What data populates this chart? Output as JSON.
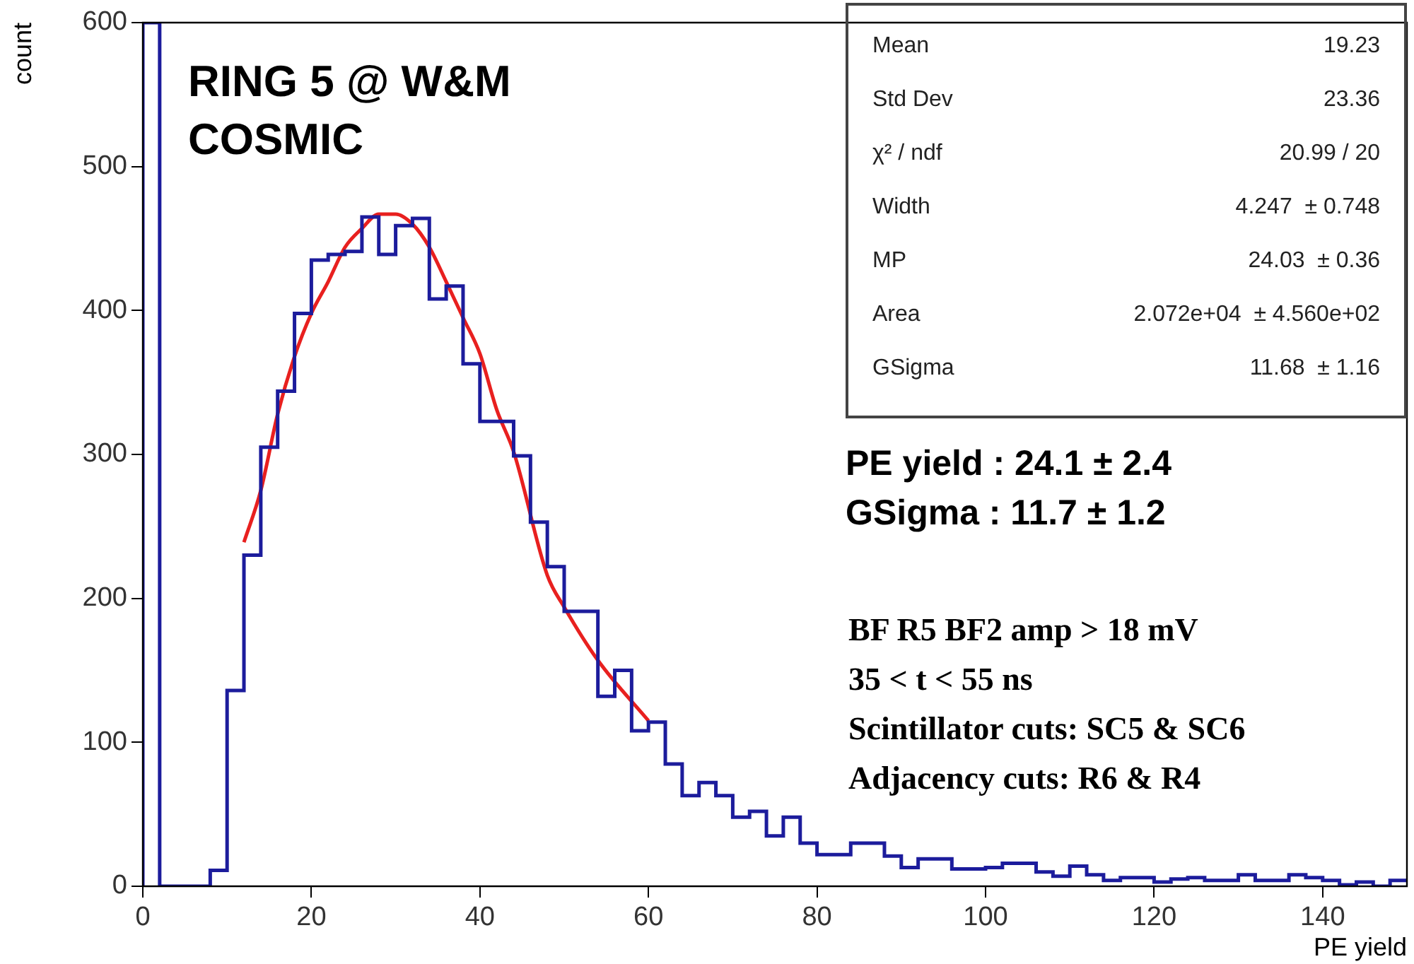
{
  "chart_data": {
    "type": "histogram",
    "xlabel": "PE yield",
    "ylabel": "count",
    "bins": [
      0,
      2,
      4,
      6,
      8,
      10,
      12,
      14,
      16,
      18,
      20,
      22,
      24,
      26,
      28,
      30,
      32,
      34,
      36,
      38,
      40,
      42,
      44,
      46,
      48,
      50,
      52,
      54,
      56,
      58,
      60,
      62,
      64,
      66,
      68,
      70,
      72,
      74,
      76,
      78,
      80,
      82,
      84,
      86,
      88,
      90,
      92,
      94,
      96,
      98,
      100,
      102,
      104,
      106,
      108,
      110,
      112,
      114,
      116,
      118,
      120,
      122,
      124,
      126,
      128,
      130,
      132,
      134,
      136,
      138,
      140,
      142,
      144,
      146,
      148,
      150
    ],
    "values": [
      600,
      0,
      0,
      0,
      11,
      136,
      230,
      305,
      344,
      398,
      435,
      439,
      441,
      465,
      439,
      459,
      464,
      408,
      417,
      363,
      323,
      323,
      299,
      253,
      222,
      191,
      191,
      132,
      150,
      108,
      114,
      85,
      63,
      72,
      63,
      48,
      52,
      35,
      48,
      30,
      22,
      22,
      30,
      30,
      21,
      13,
      19,
      19,
      12,
      12,
      13,
      16,
      16,
      10,
      7,
      14,
      8,
      4,
      6,
      6,
      3,
      5,
      6,
      4,
      4,
      8,
      4,
      4,
      8,
      6,
      4,
      1,
      3,
      0,
      4
    ],
    "color": "#1c1c9c",
    "series": [
      {
        "type": "line",
        "x": [
          12,
          14,
          16,
          18,
          20,
          22,
          24,
          26,
          28,
          30,
          32,
          34,
          36,
          38,
          40,
          42,
          44,
          48,
          50,
          54,
          60
        ],
        "values": [
          239,
          275,
          328,
          368,
          398,
          420,
          444,
          457,
          467,
          467,
          460,
          444,
          420,
          395,
          370,
          331,
          302,
          216,
          194,
          157,
          115
        ],
        "color": "#e8201f"
      }
    ],
    "xlim": [
      0,
      150
    ],
    "ylim": [
      0,
      600
    ],
    "xticks": [
      0,
      20,
      40,
      60,
      80,
      100,
      120,
      140
    ],
    "yticks": [
      0,
      100,
      200,
      300,
      400,
      500,
      600
    ],
    "grid": false,
    "legend": false,
    "annotations": [
      "RING 5 @ W&M",
      "COSMIC",
      "Mean",
      "19.23",
      "Std Dev",
      "23.36",
      "χ² / ndf",
      "20.99 / 20",
      "Width",
      "4.247  ± 0.748",
      "MP",
      "24.03  ± 0.36",
      "Area",
      "2.072e+04  ± 4.560e+02",
      "GSigma",
      "11.68  ± 1.16",
      "PE yield : 24.1 ± 2.4",
      "GSigma : 11.7 ± 1.2",
      "BF R5 BF2 amp > 18 mV",
      "35 < t < 55 ns",
      "Scintillator cuts: SC5 & SC6",
      "Adjacency cuts: R6 & R4"
    ]
  }
}
